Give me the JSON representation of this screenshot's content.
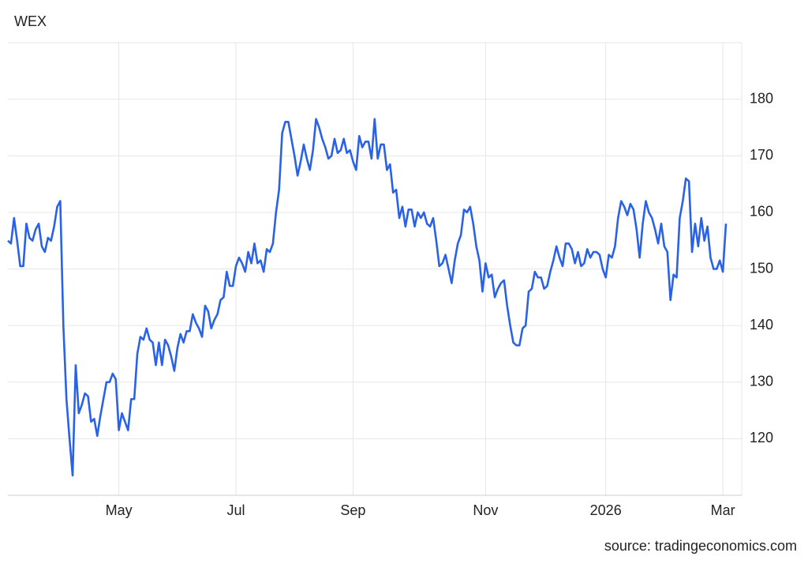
{
  "chart_data": {
    "type": "line",
    "title": "WEX",
    "source": "source: tradingeconomics.com",
    "color": "#2962e8",
    "grid": true,
    "ylim": [
      110,
      190
    ],
    "yticks": [
      120,
      130,
      140,
      150,
      160,
      170,
      180
    ],
    "xticks": [
      {
        "value": 36,
        "label": "May"
      },
      {
        "value": 74,
        "label": "Jul"
      },
      {
        "value": 112,
        "label": "Sep"
      },
      {
        "value": 155,
        "label": "Nov"
      },
      {
        "value": 194,
        "label": "2026"
      },
      {
        "value": 232,
        "label": "Mar"
      }
    ],
    "values": [
      155,
      154.5,
      159,
      155,
      150.5,
      150.5,
      158,
      155.5,
      155,
      157,
      158,
      154,
      153,
      155.5,
      155,
      157.5,
      161,
      162,
      140,
      127,
      120,
      113.5,
      133,
      124.5,
      126,
      128,
      127.5,
      123,
      123.5,
      120.5,
      124,
      127,
      130,
      130,
      131.5,
      130.5,
      121.5,
      124.5,
      123,
      121.5,
      127,
      127,
      135,
      138,
      137.5,
      139.5,
      137.5,
      137,
      133,
      137,
      133,
      137.5,
      136.5,
      134.5,
      132,
      136,
      138.5,
      137,
      139,
      139,
      142,
      140.5,
      139.5,
      138,
      143.5,
      142.5,
      139.5,
      141,
      142,
      144.5,
      145,
      149.5,
      147,
      147,
      150.5,
      152,
      151,
      149.5,
      153,
      151,
      154.5,
      151,
      151.5,
      149.5,
      153.5,
      153,
      154.5,
      160,
      164,
      174,
      176,
      176,
      173,
      170,
      166.5,
      169,
      172,
      169.5,
      167.5,
      171,
      176.5,
      175,
      173,
      171.5,
      169.5,
      170,
      173,
      170.5,
      171,
      173,
      170.5,
      171,
      169,
      167.5,
      173.5,
      171.5,
      172.5,
      172.5,
      169.5,
      176.5,
      169.5,
      172,
      172,
      167.5,
      168.5,
      163.5,
      164,
      159,
      161,
      157.5,
      160.5,
      160.5,
      157.5,
      160,
      159,
      160,
      158,
      157.5,
      159,
      155,
      150.5,
      151,
      152.5,
      150,
      147.5,
      151.5,
      154.5,
      156,
      160.5,
      160,
      161,
      158,
      154,
      151.5,
      146,
      151,
      148.5,
      149,
      145,
      146.5,
      147.5,
      148,
      143.5,
      140,
      137,
      136.5,
      136.5,
      139.5,
      140,
      146,
      146.5,
      149.5,
      148.5,
      148.5,
      146.5,
      147,
      149.5,
      151.5,
      154,
      152,
      150.5,
      154.5,
      154.5,
      153.5,
      151,
      153,
      150.5,
      151,
      153.5,
      152,
      153,
      153,
      152.5,
      150,
      148.5,
      152.5,
      152,
      154,
      159,
      162,
      161,
      159.5,
      161.5,
      160.5,
      157,
      152,
      158,
      162,
      160,
      159,
      157,
      154.5,
      158,
      154,
      153,
      144.5,
      149,
      148.5,
      159,
      162,
      166,
      165.5,
      153,
      158,
      154,
      159,
      155,
      157.5,
      152,
      150,
      150,
      151.5,
      149.5,
      158
    ]
  }
}
